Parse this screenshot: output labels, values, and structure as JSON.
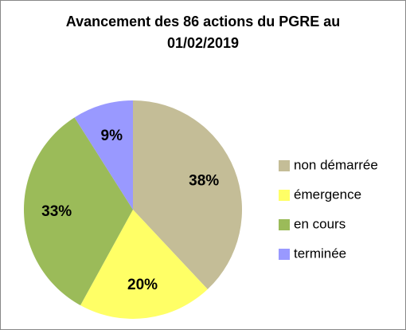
{
  "chart_data": {
    "type": "pie",
    "title": "Avancement des 86 actions du PGRE au 01/02/2019",
    "categories": [
      "non démarrée",
      "émergence",
      "en cours",
      "terminée"
    ],
    "values": [
      38,
      20,
      33,
      9
    ],
    "value_labels": [
      "38%",
      "20%",
      "33%",
      "9%"
    ],
    "colors": [
      "#c4bd97",
      "#ffff66",
      "#9bbb59",
      "#9999ff"
    ],
    "legend": "right"
  }
}
